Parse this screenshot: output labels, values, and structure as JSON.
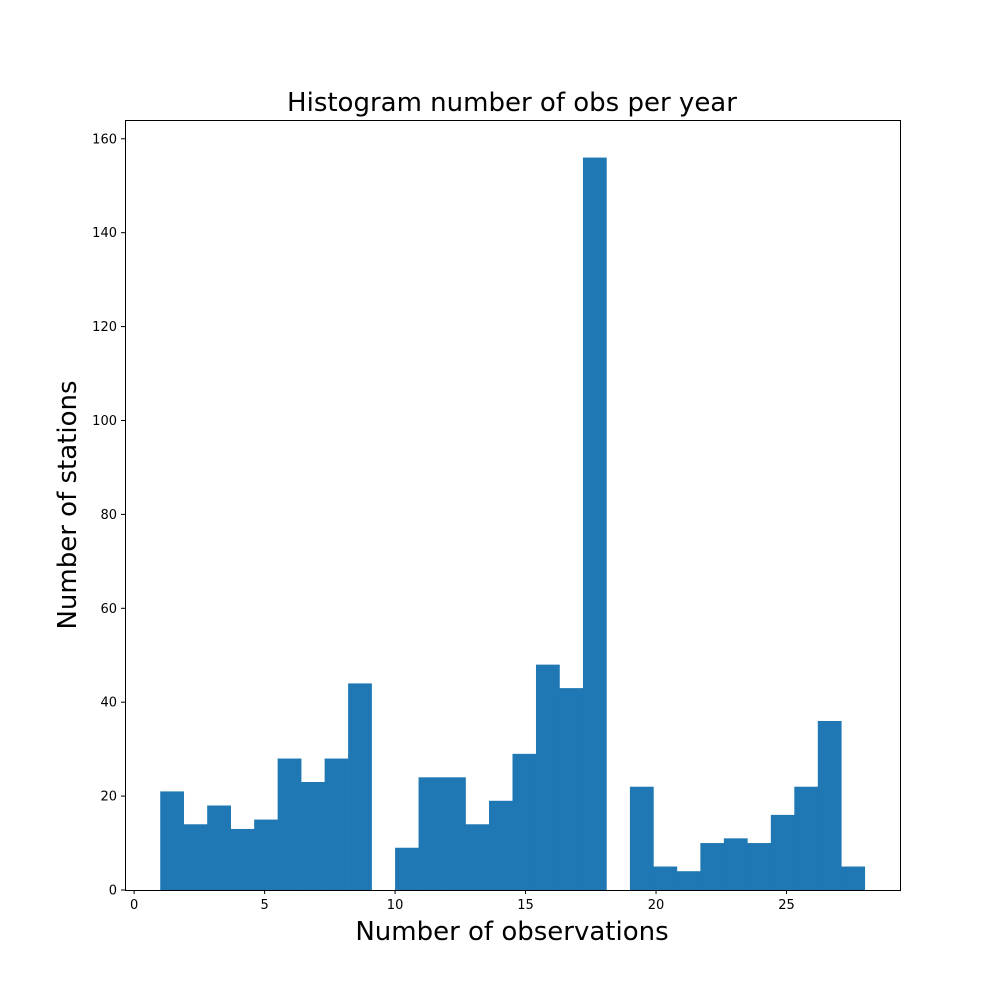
{
  "chart_data": {
    "type": "bar",
    "title": "Histogram number of obs per year",
    "xlabel": "Number of observations",
    "ylabel": "Number of stations",
    "xlim": [
      -0.35,
      29.35
    ],
    "ylim": [
      0,
      164
    ],
    "xticks": [
      0,
      5,
      10,
      15,
      20,
      25
    ],
    "yticks": [
      0,
      20,
      40,
      60,
      80,
      100,
      120,
      140,
      160
    ],
    "bin_width": 0.9,
    "grid": false,
    "color": "#1f77b4",
    "bins": [
      {
        "start": 1.0,
        "value": 21
      },
      {
        "start": 1.9,
        "value": 14
      },
      {
        "start": 2.8,
        "value": 18
      },
      {
        "start": 3.7,
        "value": 13
      },
      {
        "start": 4.6,
        "value": 15
      },
      {
        "start": 5.5,
        "value": 28
      },
      {
        "start": 6.4,
        "value": 23
      },
      {
        "start": 7.3,
        "value": 28
      },
      {
        "start": 8.2,
        "value": 44
      },
      {
        "start": 9.1,
        "value": 0
      },
      {
        "start": 10.0,
        "value": 9
      },
      {
        "start": 10.9,
        "value": 24
      },
      {
        "start": 11.8,
        "value": 24
      },
      {
        "start": 12.7,
        "value": 14
      },
      {
        "start": 13.6,
        "value": 19
      },
      {
        "start": 14.5,
        "value": 29
      },
      {
        "start": 15.4,
        "value": 48
      },
      {
        "start": 16.3,
        "value": 43
      },
      {
        "start": 17.2,
        "value": 156
      },
      {
        "start": 18.1,
        "value": 0
      },
      {
        "start": 19.0,
        "value": 22
      },
      {
        "start": 19.9,
        "value": 5
      },
      {
        "start": 20.8,
        "value": 4
      },
      {
        "start": 21.7,
        "value": 10
      },
      {
        "start": 22.6,
        "value": 11
      },
      {
        "start": 23.5,
        "value": 10
      },
      {
        "start": 24.4,
        "value": 16
      },
      {
        "start": 25.3,
        "value": 22
      },
      {
        "start": 26.2,
        "value": 36
      },
      {
        "start": 27.1,
        "value": 5
      }
    ]
  }
}
